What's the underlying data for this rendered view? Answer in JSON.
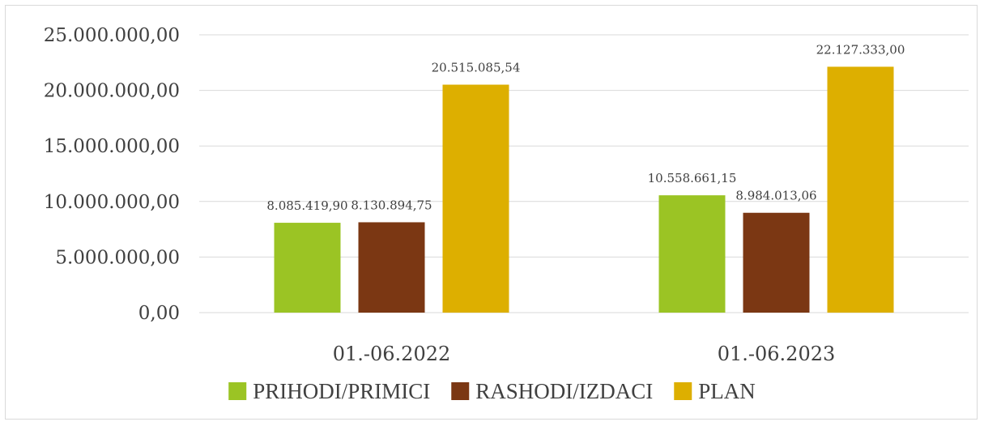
{
  "chart_data": {
    "type": "bar",
    "categories": [
      "01.-06.2022",
      "01.-06.2023"
    ],
    "series": [
      {
        "name": "PRIHODI/PRIMICI",
        "color": "#9bc424",
        "values": [
          8085419.9,
          10558661.15
        ],
        "labels": [
          "8.085.419,90",
          "10.558.661,15"
        ]
      },
      {
        "name": "RASHODI/IZDACI",
        "color": "#7b3713",
        "values": [
          8130894.75,
          8984013.06
        ],
        "labels": [
          "8.130.894,75",
          "8.984.013,06"
        ]
      },
      {
        "name": "PLAN",
        "color": "#ddaf00",
        "values": [
          20515085.54,
          22127333.0
        ],
        "labels": [
          "20.515.085,54",
          "22.127.333,00"
        ]
      }
    ],
    "yticks": [
      "0,00",
      "5.000.000,00",
      "10.000.000,00",
      "15.000.000,00",
      "20.000.000,00",
      "25.000.000,00"
    ],
    "ylim": [
      0,
      25000000
    ],
    "grid": true,
    "legend_position": "bottom"
  }
}
